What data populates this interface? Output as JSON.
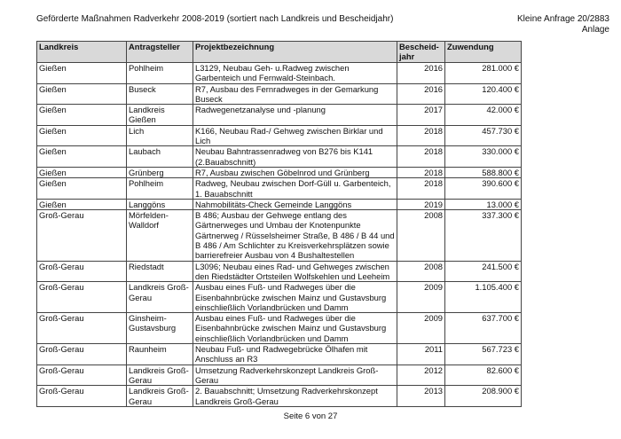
{
  "header": {
    "title": "Geförderte Maßnahmen Radverkehr 2008-2019 (sortiert nach Landkreis und Bescheidjahr)",
    "reference": "Kleine Anfrage 20/2883",
    "annex": "Anlage"
  },
  "table": {
    "columns": [
      "Landkreis",
      "Antragsteller",
      "Projektbezeichnung",
      "Bescheid-jahr",
      "Zuwendung"
    ],
    "rows": [
      [
        "Gießen",
        "Pohlheim",
        "L3129, Neubau Geh- u.Radweg zwischen Garbenteich und Fernwald-Steinbach.",
        "2016",
        "281.000 €"
      ],
      [
        "Gießen",
        "Buseck",
        "R7, Ausbau des Fernradweges in der Gemarkung Buseck",
        "2016",
        "120.400 €"
      ],
      [
        "Gießen",
        "Landkreis Gießen",
        "Radwegenetzanalyse und -planung",
        "2017",
        "42.000 €"
      ],
      [
        "Gießen",
        "Lich",
        "K166, Neubau Rad-/ Gehweg zwischen Birklar und Lich",
        "2018",
        "457.730 €"
      ],
      [
        "Gießen",
        "Laubach",
        "Neubau Bahntrassenradweg von B276 bis K141 (2.Bauabschnitt)",
        "2018",
        "330.000 €"
      ],
      [
        "Gießen",
        "Grünberg",
        "R7, Ausbau zwischen Göbelnrod und Grünberg",
        "2018",
        "588.800 €"
      ],
      [
        "Gießen",
        "Pohlheim",
        "Radweg, Neubau zwischen Dorf-Güll u. Garbenteich, 1. Bauabschnitt",
        "2018",
        "390.600 €"
      ],
      [
        "Gießen",
        "Langgöns",
        "Nahmobilitäts-Check Gemeinde Langgöns",
        "2019",
        "13.000 €"
      ],
      [
        "Groß-Gerau",
        "Mörfelden-Walldorf",
        "B 486; Ausbau der Gehwege entlang des Gärtnerweges und Umbau der Knotenpunkte Gärtnerweg / Rüsselsheimer Straße, B 486 / B 44 und B 486 / Am Schlichter zu Kreisverkehrsplätzen sowie barrierefreier Ausbau von 4 Bushaltestellen",
        "2008",
        "337.300 €"
      ],
      [
        "Groß-Gerau",
        "Riedstadt",
        "L3096; Neubau eines Rad- und Gehweges zwischen den Riedstädter Ortsteilen Wolfskehlen und Leeheim",
        "2008",
        "241.500 €"
      ],
      [
        "Groß-Gerau",
        "Landkreis Groß-Gerau",
        "Ausbau eines Fuß- und Radweges über die Eisenbahnbrücke zwischen Mainz und  Gustavsburg einschließlich Vorlandbrücken und Damm",
        "2009",
        "1.105.400 €"
      ],
      [
        "Groß-Gerau",
        "Ginsheim-Gustavsburg",
        "Ausbau eines Fuß- und Radweges über die Eisenbahnbrücke zwischen Mainz und Gustavsburg einschließlich Vorlandbrücken und Damm",
        "2009",
        "637.700 €"
      ],
      [
        "Groß-Gerau",
        "Raunheim",
        "Neubau Fuß- und Radwegebrücke Ölhafen mit Anschluss an R3",
        "2011",
        "567.723 €"
      ],
      [
        "Groß-Gerau",
        "Landkreis Groß-Gerau",
        "Umsetzung Radverkehrskonzept Landkreis Groß-Gerau",
        "2012",
        "82.600 €"
      ],
      [
        "Groß-Gerau",
        "Landkreis Groß-Gerau",
        "2. Bauabschnitt; Umsetzung Radverkehrskonzept Landkreis Groß-Gerau",
        "2013",
        "208.900 €"
      ]
    ]
  },
  "footer": {
    "page": "Seite 6 von 27"
  }
}
